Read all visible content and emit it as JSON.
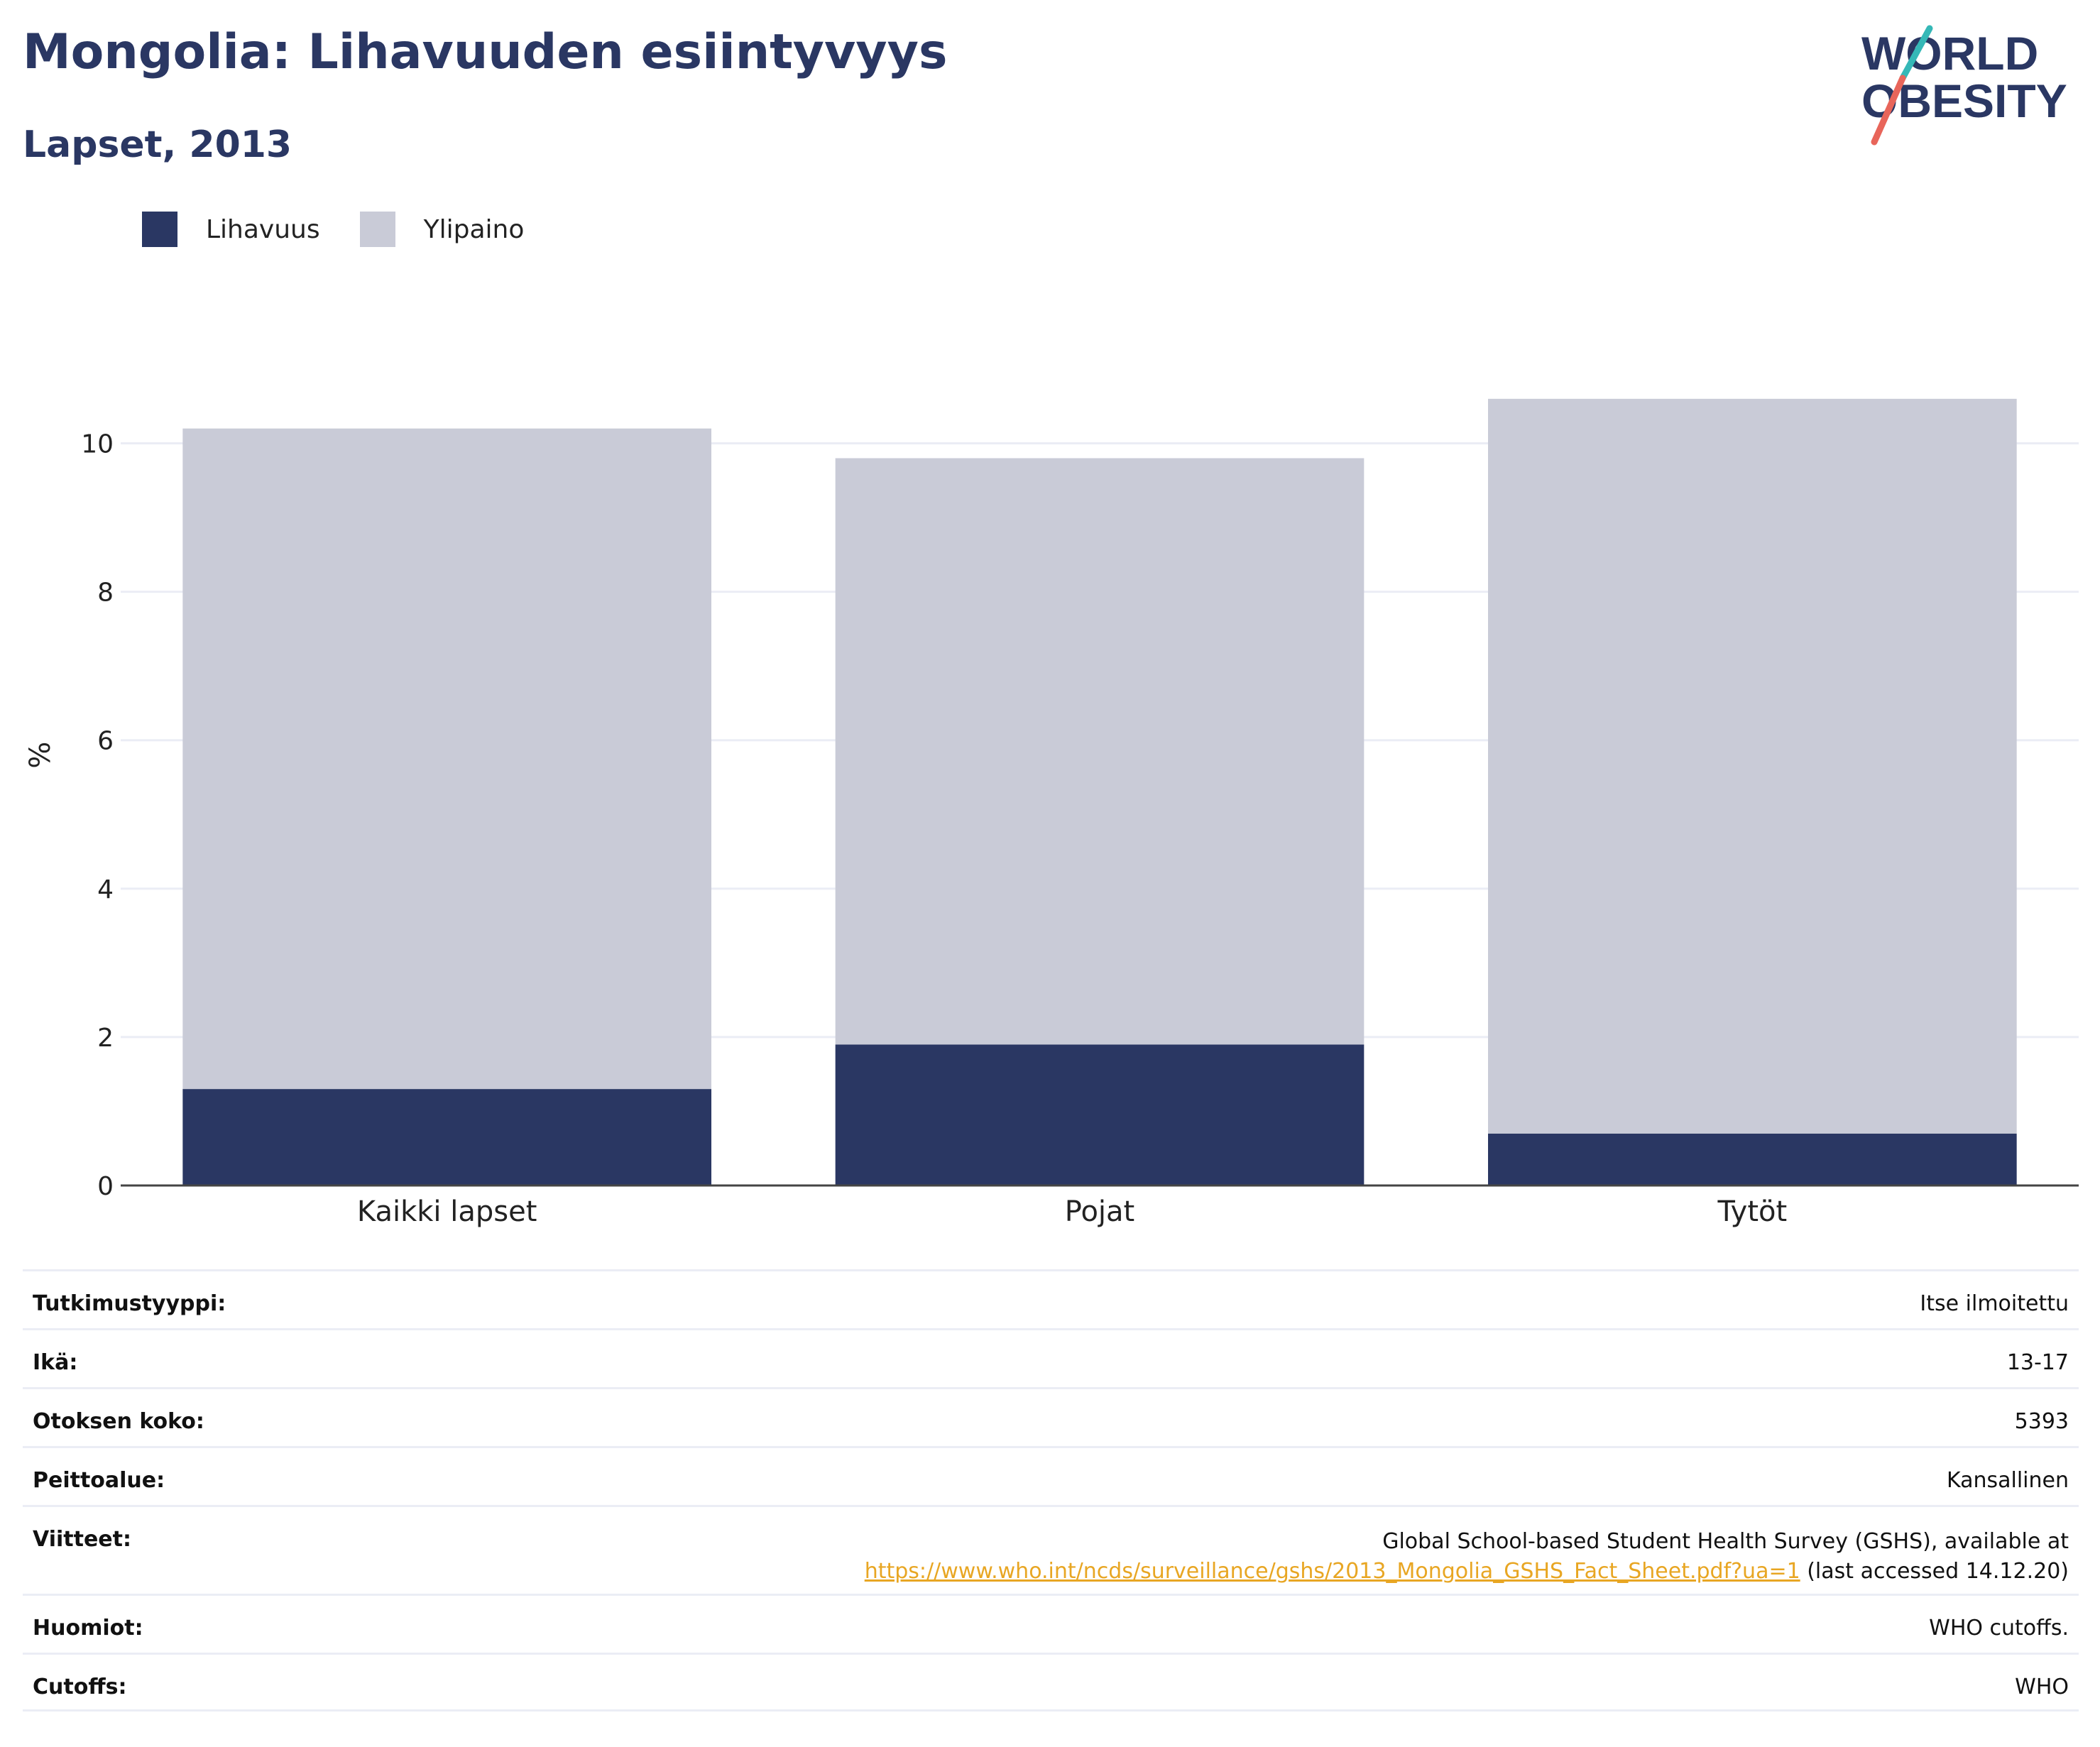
{
  "header": {
    "title": "Mongolia: Lihavuuden esiintyvyys",
    "subtitle": "Lapset, 2013"
  },
  "logo": {
    "line1": "WORLD",
    "line2": "OBESITY"
  },
  "legend": [
    {
      "label": "Lihavuus",
      "color": "#2a3763"
    },
    {
      "label": "Ylipaino",
      "color": "#c9cbd7"
    }
  ],
  "chart_data": {
    "type": "bar",
    "stacked": true,
    "categories": [
      "Kaikki lapset",
      "Pojat",
      "Tytöt"
    ],
    "series": [
      {
        "name": "Lihavuus",
        "values": [
          1.3,
          1.9,
          0.7
        ],
        "color": "#2a3763"
      },
      {
        "name": "Ylipaino",
        "values": [
          8.9,
          7.9,
          9.9
        ],
        "color": "#c9cbd7"
      }
    ],
    "ylabel": "%",
    "ylim": [
      0,
      11
    ],
    "yticks": [
      0,
      2,
      4,
      6,
      8,
      10
    ],
    "grid": true,
    "legend_position": "top-left"
  },
  "info": [
    {
      "key": "Tutkimustyyppi:",
      "value": "Itse ilmoitettu"
    },
    {
      "key": "Ikä:",
      "value": "13-17"
    },
    {
      "key": "Otoksen koko:",
      "value": "5393"
    },
    {
      "key": "Peittoalue:",
      "value": "Kansallinen"
    },
    {
      "key": "Viitteet:",
      "value_line1": "Global School-based Student Health Survey (GSHS), available at",
      "link": "https://www.who.int/ncds/surveillance/gshs/2013_Mongolia_GSHS_Fact_Sheet.pdf?ua=1",
      "value_line2_suffix": " (last accessed 14.12.20)"
    },
    {
      "key": "Huomiot:",
      "value": "WHO cutoffs."
    },
    {
      "key": "Cutoffs:",
      "value": "WHO"
    }
  ]
}
